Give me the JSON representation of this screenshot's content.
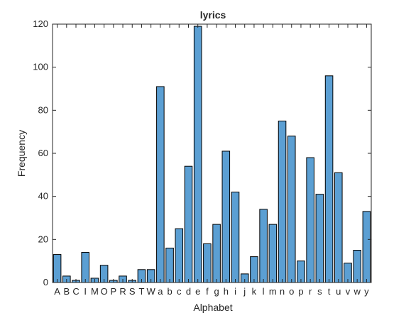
{
  "chart_data": {
    "type": "bar",
    "title": "lyrics",
    "xlabel": "Alphabet",
    "ylabel": "Frequency",
    "ylim": [
      0,
      120
    ],
    "yticks": [
      0,
      20,
      40,
      60,
      80,
      100,
      120
    ],
    "grid": false,
    "bar_color": "#5b9fd3",
    "edge_color": "#000000",
    "categories": [
      "A",
      "B",
      "C",
      "I",
      "M",
      "O",
      "P",
      "R",
      "S",
      "T",
      "W",
      "a",
      "b",
      "c",
      "d",
      "e",
      "f",
      "g",
      "h",
      "i",
      "j",
      "k",
      "l",
      "m",
      "n",
      "o",
      "p",
      "r",
      "s",
      "t",
      "u",
      "v",
      "w",
      "y"
    ],
    "values": [
      13,
      3,
      1,
      14,
      2,
      8,
      1,
      3,
      1,
      6,
      6,
      91,
      16,
      25,
      54,
      119,
      18,
      27,
      61,
      42,
      4,
      12,
      34,
      27,
      75,
      68,
      10,
      58,
      41,
      96,
      51,
      9,
      15,
      33
    ]
  }
}
